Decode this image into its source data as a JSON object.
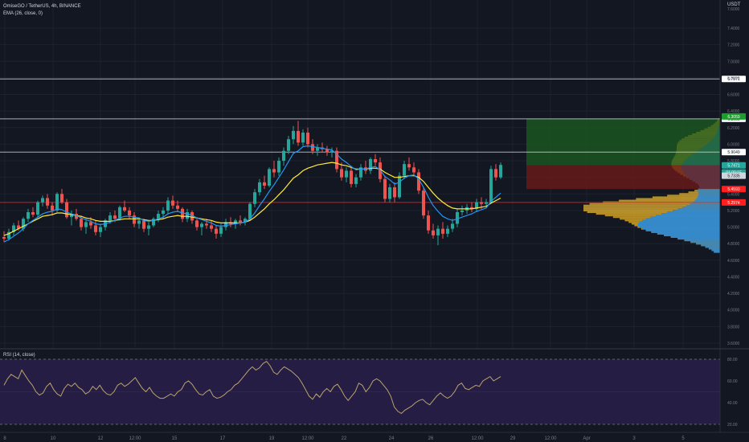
{
  "header": {
    "symbol": "OmiseGO / TetherUS, 4h, BINANCE",
    "indicator": "EMA (26, close, 0)",
    "quote_currency": "USDT"
  },
  "price_axis": {
    "ticks": [
      "7.4000",
      "7.2000",
      "7.0000",
      "6.8000",
      "6.6000",
      "6.4000",
      "6.2000",
      "6.0000",
      "5.8000",
      "5.6000",
      "5.4000",
      "5.2000",
      "5.0000",
      "4.8000",
      "4.6000",
      "4.4000",
      "4.2000",
      "4.0000",
      "3.8000",
      "3.6000"
    ],
    "top_label": "7.6000"
  },
  "time_axis": {
    "labels": [
      "8",
      "10",
      "12",
      "12:00",
      "15",
      "17",
      "19",
      "12:00",
      "22",
      "24",
      "26",
      "12:00",
      "29",
      "12:00",
      "Apr",
      "3",
      "5"
    ]
  },
  "levels": [
    {
      "label": "6.7871",
      "price": 6.7871,
      "color": "#d1d4dc",
      "box": "#ffffff",
      "text_color": "#131722"
    },
    {
      "label": "6.3059",
      "price": 6.3059,
      "color": "#d1d4dc",
      "box": "#ffffff",
      "text_color": "#131722"
    },
    {
      "label": "5.9049",
      "price": 5.9049,
      "color": "#d1d4dc",
      "box": "#ffffff",
      "text_color": "#131722"
    },
    {
      "label": "5.2974",
      "price": 5.2974,
      "color": "#ff1f1f",
      "box": "#ff1f1f",
      "text_color": "#ffffff"
    }
  ],
  "price_tags": [
    {
      "label": "6.3059",
      "price": 6.335,
      "box": "#1b9f2a",
      "text_color": "#ffffff"
    },
    {
      "label": "5.7471",
      "price": 5.745,
      "box": "#26a69a",
      "text_color": "#ffffff"
    },
    {
      "label": "01:00:15",
      "price": 5.66,
      "box": "#26a69a",
      "text_color": "#ffffff"
    },
    {
      "label": "5.7335",
      "price": 5.62,
      "box": "#d1d4dc",
      "text_color": "#131722"
    },
    {
      "label": "5.4593",
      "price": 5.4593,
      "box": "#ff1f1f",
      "text_color": "#ffffff"
    }
  ],
  "rsi": {
    "title": "RSI (14, close)",
    "ticks": [
      "80.00",
      "60.00",
      "40.00",
      "20.00"
    ],
    "values": [
      56,
      62,
      66,
      64,
      62,
      70,
      65,
      60,
      56,
      50,
      47,
      49,
      55,
      58,
      52,
      48,
      46,
      53,
      57,
      55,
      58,
      54,
      52,
      48,
      50,
      55,
      52,
      56,
      51,
      48,
      47,
      50,
      56,
      58,
      55,
      57,
      60,
      63,
      58,
      53,
      50,
      54,
      49,
      46,
      44,
      44,
      46,
      48,
      46,
      50,
      52,
      58,
      60,
      57,
      52,
      48,
      47,
      50,
      52,
      46,
      44,
      45,
      47,
      50,
      52,
      56,
      58,
      62,
      66,
      70,
      73,
      70,
      72,
      76,
      78,
      74,
      68,
      66,
      70,
      73,
      71,
      69,
      66,
      63,
      58,
      52,
      46,
      43,
      48,
      45,
      50,
      53,
      50,
      55,
      57,
      52,
      46,
      42,
      46,
      50,
      58,
      56,
      50,
      54,
      60,
      62,
      60,
      56,
      52,
      46,
      36,
      32,
      30,
      33,
      35,
      37,
      40,
      42,
      43,
      40,
      38,
      42,
      46,
      49,
      46,
      44,
      46,
      50,
      56,
      58,
      53,
      52,
      54,
      56,
      55,
      60,
      62,
      64,
      60,
      62,
      64
    ]
  },
  "colors": {
    "up": "#26a69a",
    "down": "#ef5350",
    "candle_up_fill": "#26a69a",
    "ema_fast": "#2196f3",
    "ema_slow": "#ffeb3b",
    "rsi_line": "#b8a36b",
    "rsi_band": "#2a1e4a",
    "background": "#131722"
  },
  "chart_data": {
    "type": "candlestick",
    "title": "OmiseGO / TetherUS, 4h, BINANCE",
    "ylim": [
      3.6,
      7.6
    ],
    "position_target_zone": [
      5.7471,
      6.3059
    ],
    "position_stop_zone": [
      5.4593,
      5.7471
    ],
    "candles": [
      [
        4.88,
        4.95,
        4.82,
        4.86
      ],
      [
        4.86,
        4.98,
        4.84,
        4.94
      ],
      [
        4.94,
        5.05,
        4.9,
        5.02
      ],
      [
        5.02,
        5.08,
        4.96,
        4.98
      ],
      [
        4.98,
        5.12,
        4.95,
        5.1
      ],
      [
        5.1,
        5.22,
        5.06,
        5.18
      ],
      [
        5.18,
        5.24,
        5.12,
        5.15
      ],
      [
        5.15,
        5.32,
        5.12,
        5.3
      ],
      [
        5.3,
        5.38,
        5.25,
        5.35
      ],
      [
        5.35,
        5.4,
        5.22,
        5.26
      ],
      [
        5.26,
        5.3,
        5.14,
        5.2
      ],
      [
        5.2,
        5.42,
        5.18,
        5.4
      ],
      [
        5.4,
        5.46,
        5.28,
        5.3
      ],
      [
        5.3,
        5.34,
        5.1,
        5.12
      ],
      [
        5.12,
        5.2,
        5.02,
        5.16
      ],
      [
        5.16,
        5.22,
        5.08,
        5.1
      ],
      [
        5.1,
        5.14,
        4.96,
        5.0
      ],
      [
        5.0,
        5.1,
        4.92,
        5.06
      ],
      [
        5.06,
        5.12,
        4.98,
        5.02
      ],
      [
        5.02,
        5.08,
        4.9,
        4.94
      ],
      [
        4.94,
        5.04,
        4.88,
        5.0
      ],
      [
        5.0,
        5.1,
        4.96,
        5.08
      ],
      [
        5.08,
        5.18,
        5.04,
        5.14
      ],
      [
        5.14,
        5.2,
        5.06,
        5.1
      ],
      [
        5.1,
        5.26,
        5.08,
        5.24
      ],
      [
        5.24,
        5.32,
        5.18,
        5.2
      ],
      [
        5.2,
        5.24,
        5.1,
        5.14
      ],
      [
        5.14,
        5.18,
        5.0,
        5.04
      ],
      [
        5.04,
        5.12,
        4.98,
        5.08
      ],
      [
        5.08,
        5.1,
        4.94,
        4.98
      ],
      [
        4.98,
        5.06,
        4.9,
        5.02
      ],
      [
        5.02,
        5.12,
        5.0,
        5.1
      ],
      [
        5.1,
        5.2,
        5.06,
        5.16
      ],
      [
        5.16,
        5.24,
        5.1,
        5.2
      ],
      [
        5.2,
        5.36,
        5.16,
        5.32
      ],
      [
        5.32,
        5.38,
        5.22,
        5.26
      ],
      [
        5.26,
        5.32,
        5.18,
        5.22
      ],
      [
        5.22,
        5.24,
        5.06,
        5.1
      ],
      [
        5.1,
        5.22,
        5.06,
        5.18
      ],
      [
        5.18,
        5.2,
        5.04,
        5.08
      ],
      [
        5.08,
        5.12,
        4.96,
        5.0
      ],
      [
        5.0,
        5.06,
        4.9,
        5.04
      ],
      [
        5.04,
        5.1,
        4.98,
        5.02
      ],
      [
        5.02,
        5.08,
        4.94,
        4.98
      ],
      [
        4.98,
        5.02,
        4.86,
        4.92
      ],
      [
        4.92,
        5.04,
        4.88,
        5.0
      ],
      [
        5.0,
        5.1,
        4.96,
        5.06
      ],
      [
        5.06,
        5.12,
        5.0,
        5.04
      ],
      [
        5.04,
        5.1,
        4.98,
        5.08
      ],
      [
        5.08,
        5.14,
        5.02,
        5.06
      ],
      [
        5.06,
        5.12,
        5.02,
        5.1
      ],
      [
        5.1,
        5.3,
        5.08,
        5.28
      ],
      [
        5.28,
        5.46,
        5.24,
        5.42
      ],
      [
        5.42,
        5.58,
        5.38,
        5.54
      ],
      [
        5.54,
        5.62,
        5.46,
        5.5
      ],
      [
        5.5,
        5.72,
        5.48,
        5.7
      ],
      [
        5.7,
        5.8,
        5.6,
        5.66
      ],
      [
        5.66,
        5.84,
        5.62,
        5.8
      ],
      [
        5.8,
        5.96,
        5.74,
        5.92
      ],
      [
        5.92,
        6.1,
        5.88,
        6.06
      ],
      [
        6.06,
        6.22,
        6.0,
        6.16
      ],
      [
        6.16,
        6.28,
        5.98,
        6.02
      ],
      [
        6.02,
        6.18,
        5.98,
        6.14
      ],
      [
        6.14,
        6.2,
        5.96,
        6.0
      ],
      [
        6.0,
        6.06,
        5.88,
        5.92
      ],
      [
        5.92,
        6.0,
        5.86,
        5.96
      ],
      [
        5.96,
        6.02,
        5.9,
        5.94
      ],
      [
        5.94,
        5.98,
        5.86,
        5.9
      ],
      [
        5.9,
        5.96,
        5.84,
        5.92
      ],
      [
        5.92,
        5.96,
        5.66,
        5.7
      ],
      [
        5.7,
        5.78,
        5.56,
        5.6
      ],
      [
        5.6,
        5.72,
        5.54,
        5.68
      ],
      [
        5.68,
        5.74,
        5.48,
        5.52
      ],
      [
        5.52,
        5.64,
        5.48,
        5.6
      ],
      [
        5.6,
        5.76,
        5.56,
        5.72
      ],
      [
        5.72,
        5.8,
        5.64,
        5.68
      ],
      [
        5.68,
        5.84,
        5.64,
        5.82
      ],
      [
        5.82,
        5.88,
        5.74,
        5.78
      ],
      [
        5.78,
        5.84,
        5.54,
        5.58
      ],
      [
        5.58,
        5.62,
        5.3,
        5.34
      ],
      [
        5.34,
        5.52,
        5.3,
        5.48
      ],
      [
        5.48,
        5.54,
        5.3,
        5.36
      ],
      [
        5.36,
        5.66,
        5.34,
        5.62
      ],
      [
        5.62,
        5.8,
        5.58,
        5.76
      ],
      [
        5.76,
        5.84,
        5.68,
        5.72
      ],
      [
        5.72,
        5.78,
        5.62,
        5.66
      ],
      [
        5.66,
        5.7,
        5.4,
        5.44
      ],
      [
        5.44,
        5.48,
        5.1,
        5.14
      ],
      [
        5.14,
        5.2,
        4.92,
        4.96
      ],
      [
        4.96,
        5.04,
        4.86,
        4.9
      ],
      [
        4.9,
        5.02,
        4.78,
        4.98
      ],
      [
        4.98,
        5.06,
        4.86,
        4.92
      ],
      [
        4.92,
        5.02,
        4.88,
        4.98
      ],
      [
        4.98,
        5.1,
        4.94,
        5.04
      ],
      [
        5.04,
        5.22,
        5.0,
        5.18
      ],
      [
        5.18,
        5.26,
        5.14,
        5.2
      ],
      [
        5.2,
        5.28,
        5.16,
        5.24
      ],
      [
        5.24,
        5.3,
        5.18,
        5.22
      ],
      [
        5.22,
        5.34,
        5.18,
        5.3
      ],
      [
        5.3,
        5.36,
        5.22,
        5.28
      ],
      [
        5.28,
        5.34,
        5.24,
        5.3
      ],
      [
        5.3,
        5.74,
        5.28,
        5.7
      ],
      [
        5.7,
        5.76,
        5.56,
        5.6
      ],
      [
        5.6,
        5.78,
        5.58,
        5.75
      ]
    ],
    "ema_fast": [
      4.82,
      4.85,
      4.89,
      4.93,
      4.98,
      5.04,
      5.08,
      5.12,
      5.16,
      5.18,
      5.19,
      5.22,
      5.21,
      5.18,
      5.16,
      5.14,
      5.11,
      5.09,
      5.07,
      5.04,
      5.03,
      5.04,
      5.06,
      5.08,
      5.11,
      5.13,
      5.13,
      5.12,
      5.11,
      5.08,
      5.07,
      5.08,
      5.1,
      5.12,
      5.16,
      5.18,
      5.19,
      5.17,
      5.16,
      5.14,
      5.11,
      5.09,
      5.07,
      5.05,
      5.02,
      5.01,
      5.02,
      5.03,
      5.04,
      5.05,
      5.06,
      5.1,
      5.17,
      5.26,
      5.34,
      5.43,
      5.51,
      5.6,
      5.69,
      5.79,
      5.89,
      5.92,
      5.97,
      5.98,
      5.97,
      5.96,
      5.95,
      5.94,
      5.93,
      5.88,
      5.82,
      5.78,
      5.73,
      5.69,
      5.7,
      5.7,
      5.72,
      5.73,
      5.69,
      5.61,
      5.57,
      5.52,
      5.54,
      5.59,
      5.62,
      5.63,
      5.58,
      5.48,
      5.36,
      5.26,
      5.19,
      5.13,
      5.1,
      5.08,
      5.1,
      5.12,
      5.14,
      5.16,
      5.19,
      5.21,
      5.23,
      5.31,
      5.36,
      5.41
    ],
    "ema_slow": [
      4.9,
      4.92,
      4.95,
      4.98,
      5.01,
      5.04,
      5.07,
      5.1,
      5.13,
      5.14,
      5.15,
      5.17,
      5.17,
      5.16,
      5.15,
      5.14,
      5.13,
      5.11,
      5.1,
      5.08,
      5.07,
      5.07,
      5.07,
      5.08,
      5.09,
      5.1,
      5.1,
      5.1,
      5.1,
      5.09,
      5.08,
      5.08,
      5.09,
      5.1,
      5.12,
      5.13,
      5.14,
      5.13,
      5.13,
      5.12,
      5.11,
      5.1,
      5.09,
      5.08,
      5.06,
      5.05,
      5.05,
      5.05,
      5.05,
      5.05,
      5.06,
      5.08,
      5.12,
      5.17,
      5.22,
      5.28,
      5.33,
      5.39,
      5.45,
      5.52,
      5.59,
      5.63,
      5.68,
      5.71,
      5.73,
      5.75,
      5.76,
      5.77,
      5.78,
      5.77,
      5.75,
      5.74,
      5.72,
      5.7,
      5.7,
      5.7,
      5.71,
      5.71,
      5.7,
      5.66,
      5.63,
      5.6,
      5.6,
      5.61,
      5.62,
      5.62,
      5.6,
      5.55,
      5.48,
      5.41,
      5.35,
      5.3,
      5.26,
      5.23,
      5.22,
      5.22,
      5.22,
      5.22,
      5.23,
      5.24,
      5.25,
      5.29,
      5.32,
      5.35
    ]
  }
}
